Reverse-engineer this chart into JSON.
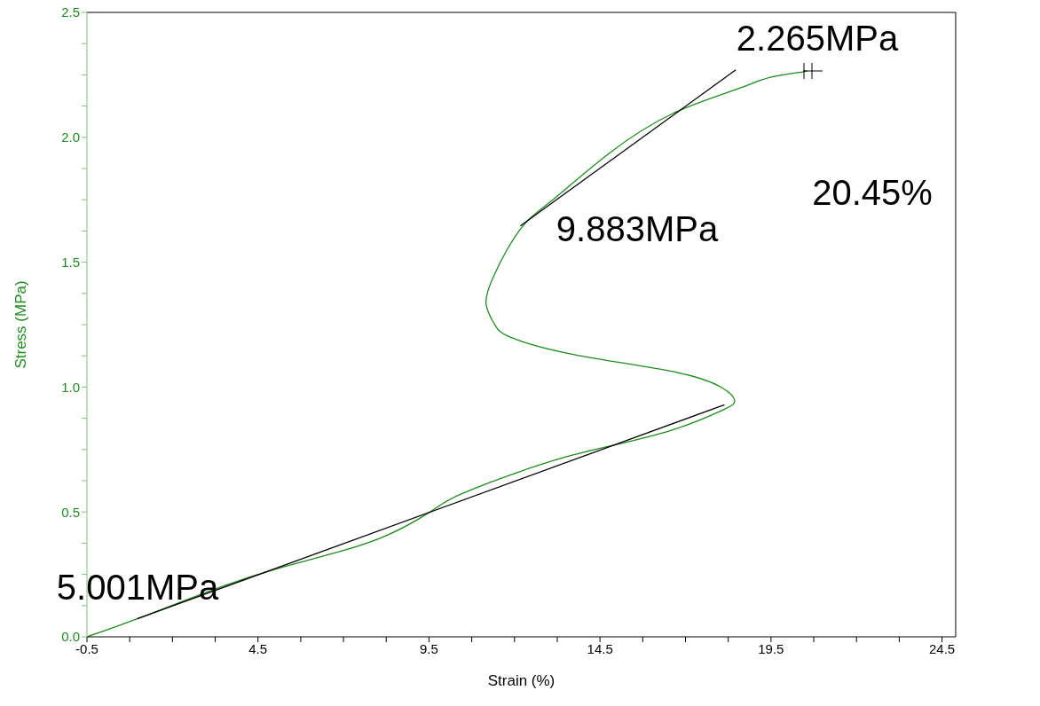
{
  "chart_data": {
    "type": "line",
    "xlabel": "Strain (%)",
    "ylabel": "Stress (MPa)",
    "xlim": [
      -0.5,
      24.9
    ],
    "ylim": [
      0,
      2.5
    ],
    "xticks": [
      -0.5,
      {
        "value": 0.75,
        "label": null
      },
      {
        "value": 2,
        "label": null
      },
      {
        "value": 3.25,
        "label": null
      },
      4.5,
      {
        "value": 5.75,
        "label": null
      },
      {
        "value": 7,
        "label": null
      },
      {
        "value": 8.25,
        "label": null
      },
      9.5,
      {
        "value": 10.75,
        "label": null
      },
      {
        "value": 12,
        "label": null
      },
      {
        "value": 13.25,
        "label": null
      },
      14.5,
      {
        "value": 15.75,
        "label": null
      },
      {
        "value": 17,
        "label": null
      },
      {
        "value": 18.25,
        "label": null
      },
      19.5,
      {
        "value": 20.75,
        "label": null
      },
      {
        "value": 22,
        "label": null
      },
      {
        "value": 23.25,
        "label": null
      },
      24.5
    ],
    "yticks": [
      {
        "value": 0,
        "label": "0.0"
      },
      {
        "value": 0.125,
        "label": null
      },
      {
        "value": 0.25,
        "label": null
      },
      {
        "value": 0.375,
        "label": null
      },
      0.5,
      {
        "value": 0.625,
        "label": null
      },
      {
        "value": 0.75,
        "label": null
      },
      {
        "value": 0.875,
        "label": null
      },
      {
        "value": 1,
        "label": "1.0"
      },
      {
        "value": 1.125,
        "label": null
      },
      {
        "value": 1.25,
        "label": null
      },
      {
        "value": 1.375,
        "label": null
      },
      1.5,
      {
        "value": 1.625,
        "label": null
      },
      {
        "value": 1.75,
        "label": null
      },
      {
        "value": 1.875,
        "label": null
      },
      {
        "value": 2,
        "label": "2.0"
      },
      {
        "value": 2.125,
        "label": null
      },
      {
        "value": 2.25,
        "label": null
      },
      {
        "value": 2.375,
        "label": null
      },
      2.5
    ],
    "grid": false,
    "series": [
      {
        "color": "#1e8c1e",
        "x": [
          -0.5,
          0.97,
          3.32,
          5.2,
          6.91,
          8.28,
          9.47,
          10.33,
          12.04,
          13.5,
          14.73,
          16.63,
          18.06,
          18.44,
          18.06,
          16.63,
          13.78,
          11.88,
          11.41,
          11.17,
          11.41,
          12.17,
          13.12,
          14.74,
          16.64,
          18.53,
          19.48,
          20.43,
          20.45
        ],
        "values": [
          0,
          0.072,
          0.195,
          0.278,
          0.342,
          0.407,
          0.495,
          0.565,
          0.656,
          0.72,
          0.762,
          0.829,
          0.906,
          0.945,
          0.998,
          1.062,
          1.129,
          1.2,
          1.253,
          1.332,
          1.45,
          1.632,
          1.75,
          1.933,
          2.096,
          2.194,
          2.24,
          2.262,
          2.265
        ]
      },
      {
        "color": "#000000",
        "x": [
          0.97,
          18.14
        ],
        "values": [
          0.072,
          0.929
        ]
      },
      {
        "color": "#000000",
        "x": [
          12.17,
          18.47
        ],
        "values": [
          1.645,
          2.27
        ]
      }
    ],
    "annotations": [
      "5.001MPa",
      "9.883MPa",
      "2.265MPa",
      "20.45%"
    ]
  }
}
